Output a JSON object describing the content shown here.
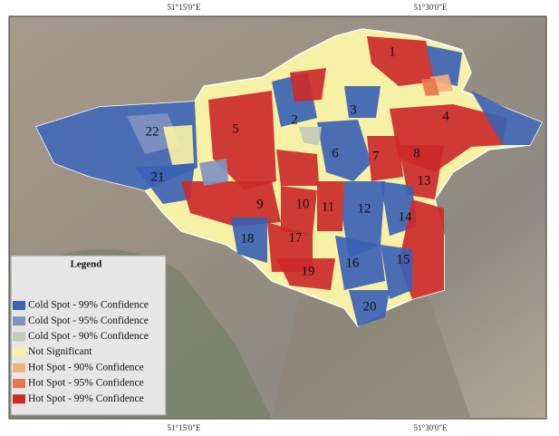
{
  "coordinates": {
    "top": [
      "51°15'0\"E",
      "51°30'0\"E"
    ],
    "bottom": [
      "51°15'0\"E",
      "51°30'0\"E"
    ]
  },
  "legend": {
    "title": "Legend",
    "items": [
      {
        "label": "Cold Spot - 99% Confidence",
        "color": "#3b62b4"
      },
      {
        "label": "Cold Spot - 95% Confidence",
        "color": "#7f94c0"
      },
      {
        "label": "Cold Spot - 90% Confidence",
        "color": "#c3cab8"
      },
      {
        "label": "Not Significant",
        "color": "#f6f1a4"
      },
      {
        "label": "Hot Spot - 90% Confidence",
        "color": "#f3b07c"
      },
      {
        "label": "Hot Spot - 95% Confidence",
        "color": "#e7764f"
      },
      {
        "label": "Hot Spot - 99% Confidence",
        "color": "#cc2a2a"
      }
    ]
  },
  "districts": [
    "1",
    "2",
    "3",
    "4",
    "5",
    "6",
    "7",
    "8",
    "9",
    "10",
    "11",
    "12",
    "13",
    "14",
    "15",
    "16",
    "17",
    "18",
    "19",
    "20",
    "21",
    "22"
  ]
}
